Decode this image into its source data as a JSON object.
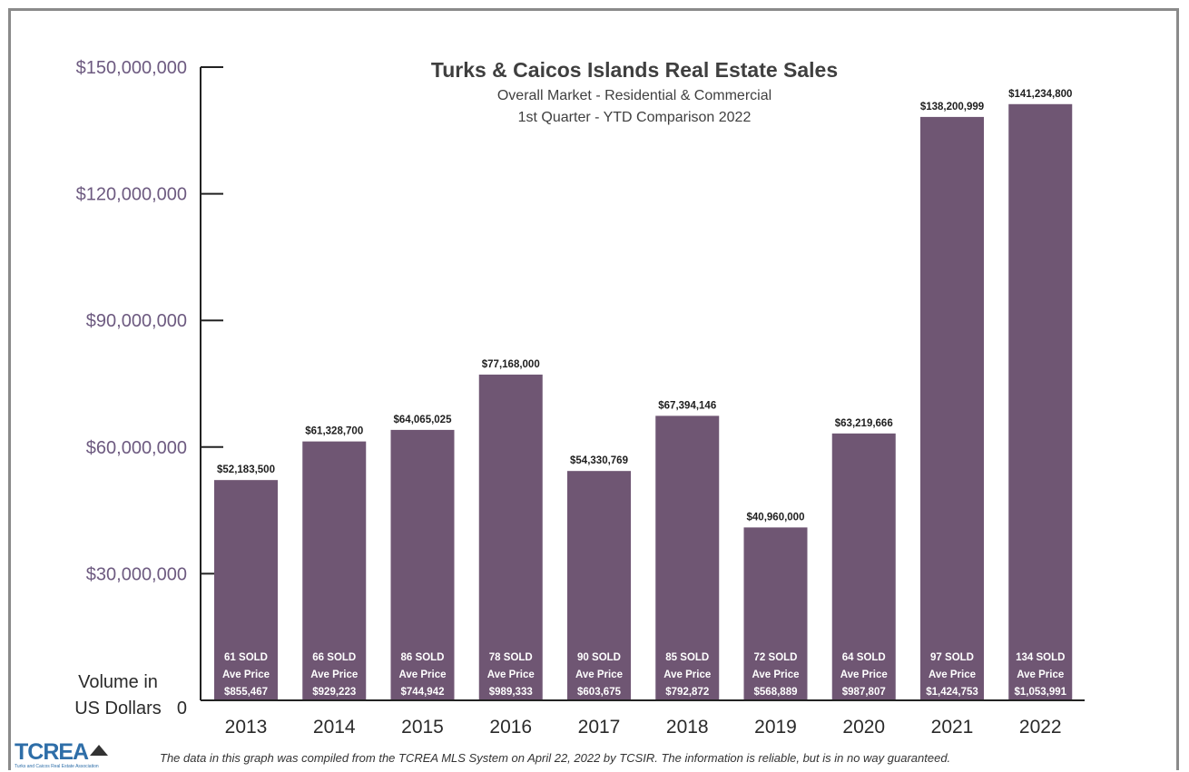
{
  "chart_data": {
    "type": "bar",
    "title": "Turks & Caicos Islands Real Estate Sales",
    "subtitle": [
      "Overall Market - Residential & Commercial",
      "1st Quarter - YTD Comparison 2022"
    ],
    "ylabel": [
      "Volume in",
      "US Dollars"
    ],
    "ylim": [
      0,
      150000000
    ],
    "yticks": [
      0,
      30000000,
      60000000,
      90000000,
      120000000,
      150000000
    ],
    "ytick_labels": [
      "0",
      "$30,000,000",
      "$60,000,000",
      "$90,000,000",
      "$120,000,000",
      "$150,000,000"
    ],
    "categories": [
      "2013",
      "2014",
      "2015",
      "2016",
      "2017",
      "2018",
      "2019",
      "2020",
      "2021",
      "2022"
    ],
    "values": [
      52183500,
      61328700,
      64065025,
      77168000,
      54330769,
      67394146,
      40960000,
      63219666,
      138200999,
      141234800
    ],
    "value_labels": [
      "$52,183,500",
      "$61,328,700",
      "$64,065,025",
      "$77,168,000",
      "$54,330,769",
      "$67,394,146",
      "$40,960,000",
      "$63,219,666",
      "$138,200,999",
      "$141,234,800"
    ],
    "sold_labels": [
      "61 SOLD",
      "66 SOLD",
      "86 SOLD",
      "78 SOLD",
      "90 SOLD",
      "85 SOLD",
      "72 SOLD",
      "64 SOLD",
      "97 SOLD",
      "134 SOLD"
    ],
    "ave_price_label": "Ave Price",
    "ave_prices": [
      "$855,467",
      "$929,223",
      "$744,942",
      "$989,333",
      "$603,675",
      "$792,872",
      "$568,889",
      "$987,807",
      "$1,424,753",
      "$1,053,991"
    ],
    "bar_color": "#6f5673",
    "grid": false,
    "legend": "none"
  },
  "logo": {
    "text": "TCREA",
    "tagline": "Turks and Caicos Real Estate Association"
  },
  "footnote": "The data in this graph was compiled from the TCREA MLS System on April 22, 2022 by TCSIR.  The information is reliable, but is in no way guaranteed."
}
